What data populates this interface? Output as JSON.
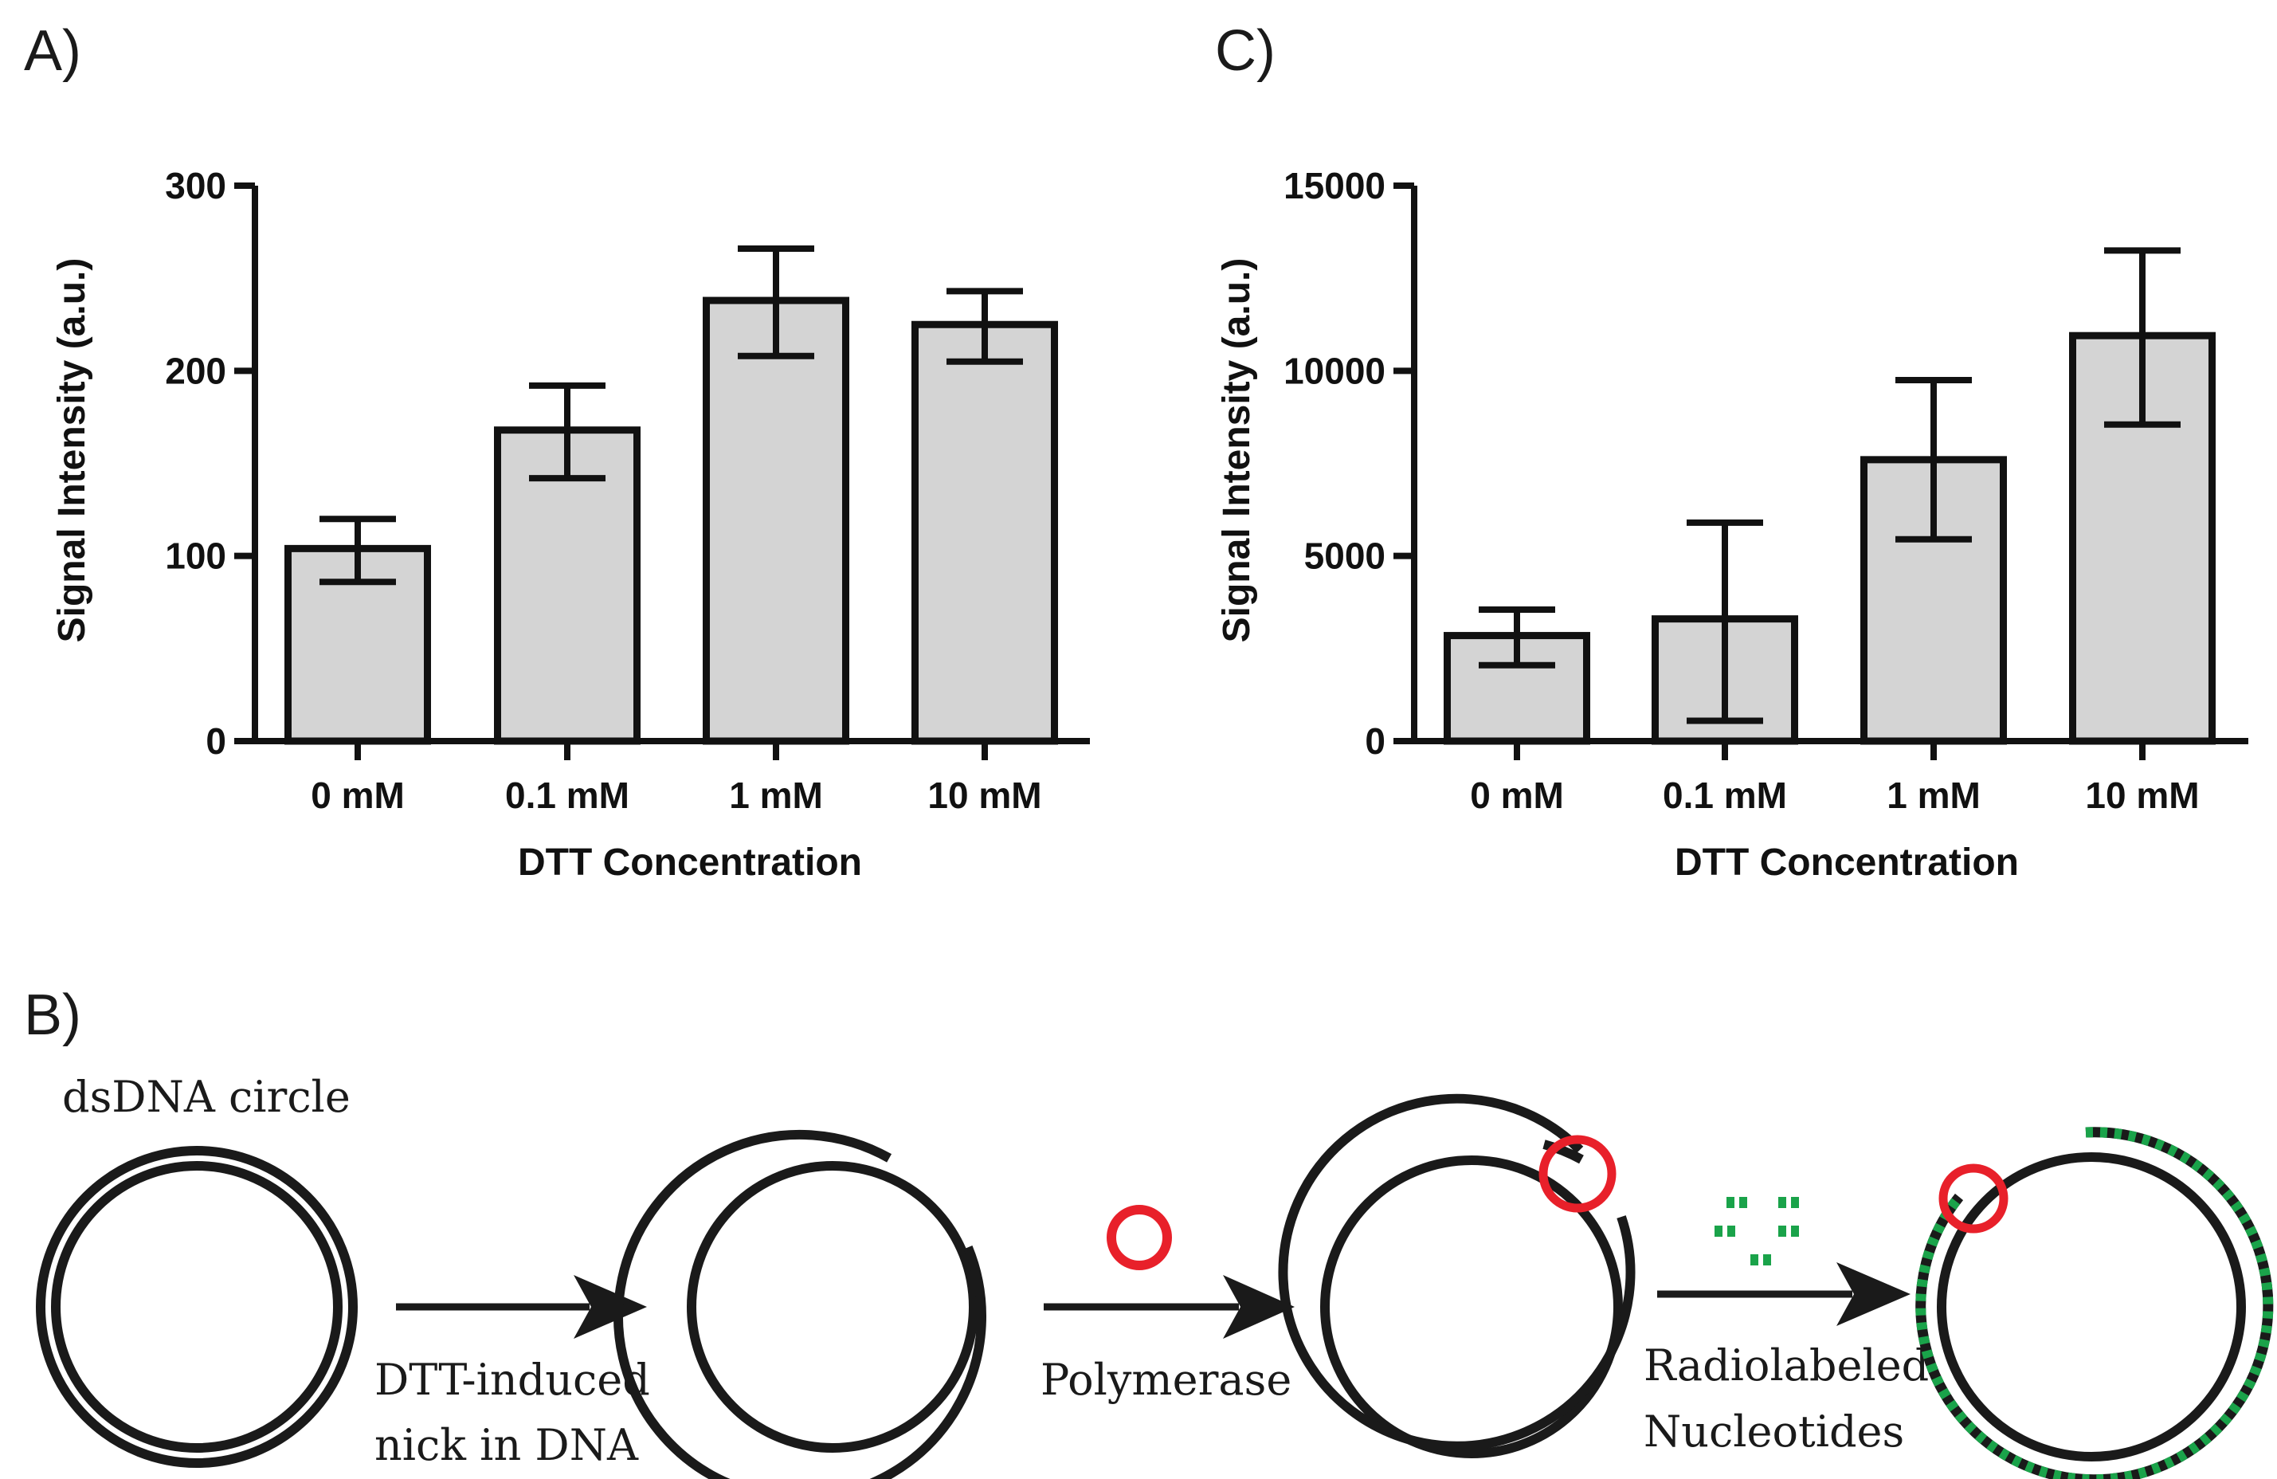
{
  "chart_data": [
    {
      "panel": "A)",
      "type": "bar",
      "categories": [
        "0 mM",
        "0.1 mM",
        "1 mM",
        "10 mM"
      ],
      "values": [
        104,
        168,
        238,
        225
      ],
      "error_low": [
        86,
        142,
        208,
        205
      ],
      "error_high": [
        120,
        192,
        266,
        243
      ],
      "xlabel": "DTT Concentration",
      "ylabel": "Signal Intensity (a.u.)",
      "ylim": [
        0,
        300
      ],
      "yticks": [
        "0",
        "100",
        "200",
        "300"
      ],
      "bar_color": "#d4d4d4"
    },
    {
      "panel": "C)",
      "type": "bar",
      "categories": [
        "0 mM",
        "0.1 mM",
        "1 mM",
        "10 mM"
      ],
      "values": [
        2850,
        3300,
        7600,
        10950
      ],
      "error_low": [
        2050,
        550,
        5450,
        8550
      ],
      "error_high": [
        3550,
        5900,
        9750,
        13250
      ],
      "xlabel": "DTT Concentration",
      "ylabel": "Signal Intensity (a.u.)",
      "ylim": [
        0,
        15000
      ],
      "yticks": [
        "0",
        "5000",
        "10000",
        "15000"
      ],
      "bar_color": "#d4d4d4"
    }
  ],
  "diagram": {
    "panel": "B)",
    "circle_label": "dsDNA circle",
    "step1_line1": "DTT-induced",
    "step1_line2": "nick in DNA",
    "step2": "Polymerase",
    "step3_line1": "Radiolabeled",
    "step3_line2": "Nucleotides",
    "polymerase_color": "#e8202a",
    "nucleotide_color": "#1aa34a",
    "dna_color": "#1a1a1a"
  }
}
